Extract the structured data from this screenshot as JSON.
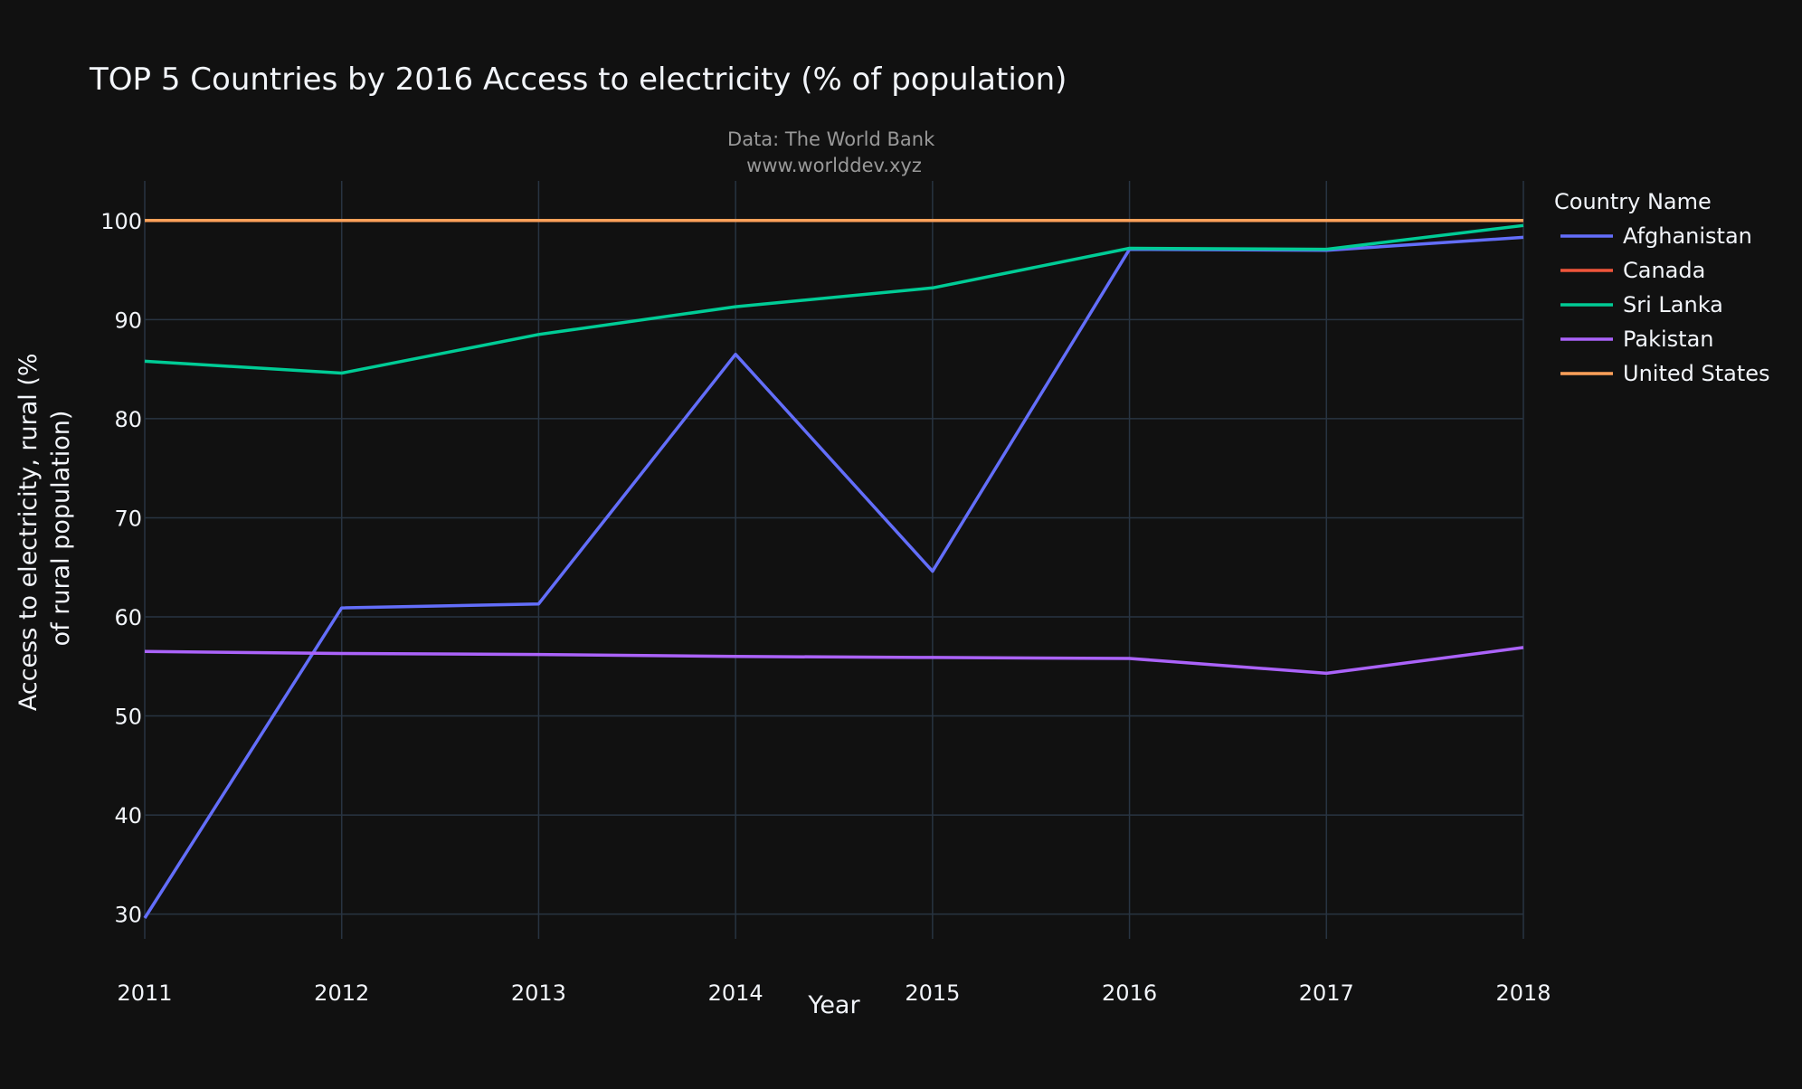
{
  "chart_data": {
    "type": "line",
    "title": "TOP 5 Countries by 2016 Access to electricity (% of population)",
    "annotation_lines": [
      "Data: The World Bank",
      "www.worlddev.xyz"
    ],
    "xlabel": "Year",
    "ylabel_lines": [
      "Access to electricity, rural (%",
      "of rural population)"
    ],
    "legend_title": "Country Name",
    "legend_position": "top-right",
    "x": [
      2011,
      2012,
      2013,
      2014,
      2015,
      2016,
      2017,
      2018
    ],
    "xlim": [
      2011,
      2018
    ],
    "ylim": [
      27.5,
      104
    ],
    "yticks": [
      30,
      40,
      50,
      60,
      70,
      80,
      90,
      100
    ],
    "grid": true,
    "series": [
      {
        "name": "Afghanistan",
        "color": "#636efa",
        "values": [
          29.6,
          60.9,
          61.3,
          86.5,
          64.6,
          97.1,
          97.0,
          98.3
        ]
      },
      {
        "name": "Canada",
        "color": "#ef553b",
        "values": [
          100,
          100,
          100,
          100,
          100,
          100,
          100,
          100
        ]
      },
      {
        "name": "Sri Lanka",
        "color": "#00cc96",
        "values": [
          85.8,
          84.6,
          88.5,
          91.3,
          93.2,
          97.2,
          97.1,
          99.5
        ]
      },
      {
        "name": "Pakistan",
        "color": "#ab63fa",
        "values": [
          56.5,
          56.3,
          56.2,
          56.0,
          55.9,
          55.8,
          54.3,
          56.9
        ]
      },
      {
        "name": "United States",
        "color": "#ffa15a",
        "values": [
          100,
          100,
          100,
          100,
          100,
          100,
          100,
          100
        ]
      }
    ]
  },
  "colors": {
    "background": "#111111",
    "gridline": "#283442",
    "text": "#f2f5fa",
    "annotation": "#999999"
  }
}
